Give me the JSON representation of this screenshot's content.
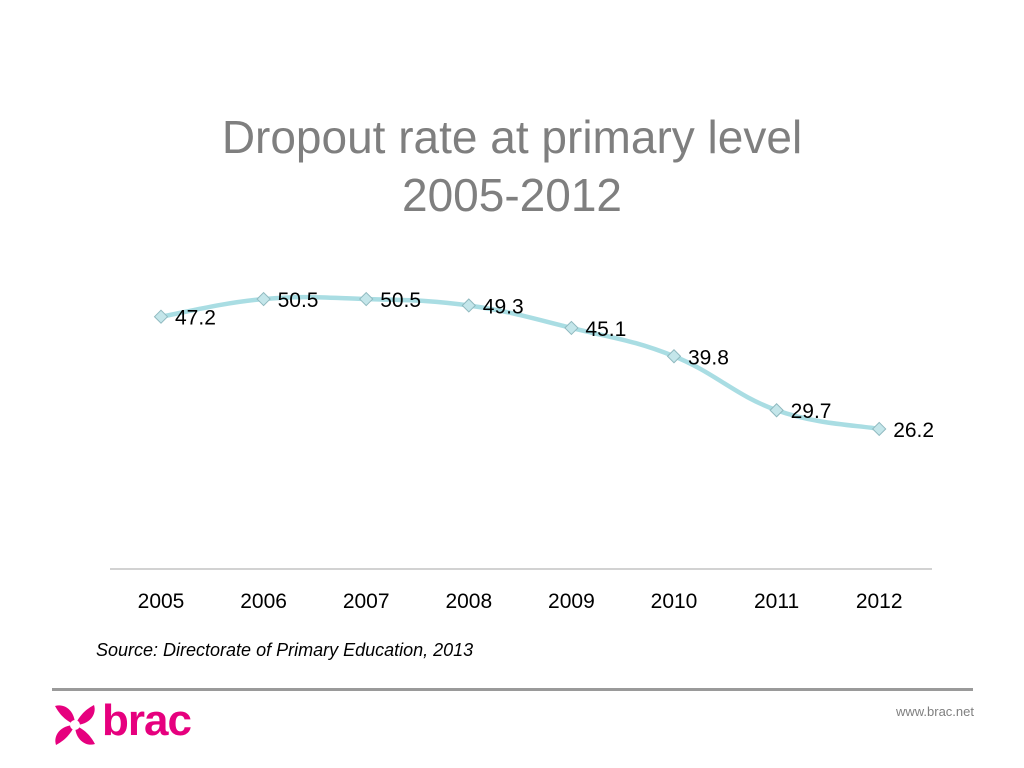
{
  "title": {
    "line1": "Dropout rate at primary level",
    "line2": "2005-2012"
  },
  "chart_data": {
    "type": "line",
    "x": [
      "2005",
      "2006",
      "2007",
      "2008",
      "2009",
      "2010",
      "2011",
      "2012"
    ],
    "series": [
      {
        "values": [
          47.2,
          50.5,
          50.5,
          49.3,
          45.1,
          39.8,
          29.7,
          26.2
        ]
      }
    ],
    "data_labels": [
      "47.2",
      "50.5",
      "50.5",
      "49.3",
      "45.1",
      "39.8",
      "29.7",
      "26.2"
    ],
    "ylim": [
      0,
      55
    ],
    "grid": false,
    "legend": "none",
    "line_color": "#a9dde3",
    "marker": "diamond",
    "marker_color": "#c4e6ea"
  },
  "source": "Source: Directorate of Primary Education, 2013",
  "footer": {
    "logo_text": "brac",
    "website": "www.brac.net",
    "brand_color": "#e6007e"
  }
}
